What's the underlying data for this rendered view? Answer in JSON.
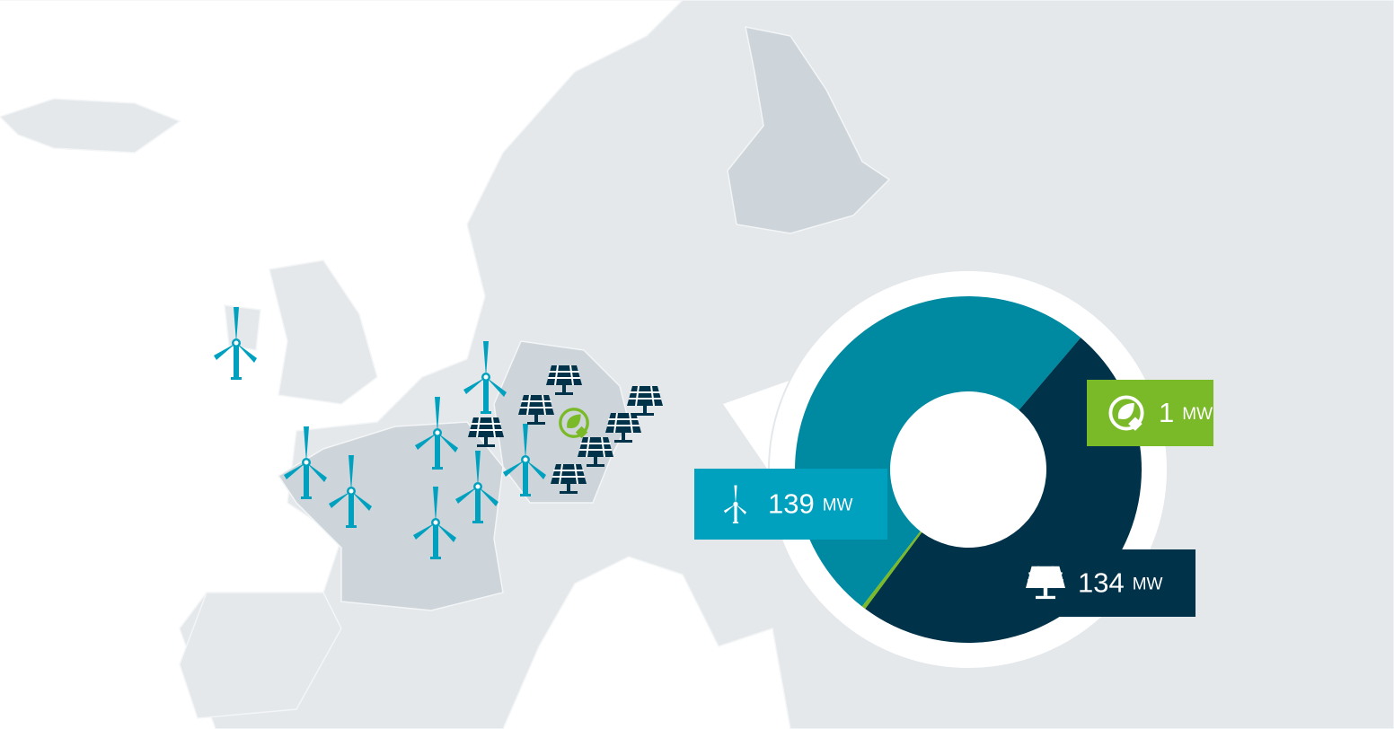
{
  "chart_data": {
    "type": "donut",
    "values": [
      139,
      134,
      1
    ],
    "unit": "MW",
    "colors": [
      "#008aa1",
      "#003249",
      "#7ab928"
    ],
    "label_colors": [
      "#00a1bf",
      "#003249",
      "#7ab928"
    ]
  }
}
